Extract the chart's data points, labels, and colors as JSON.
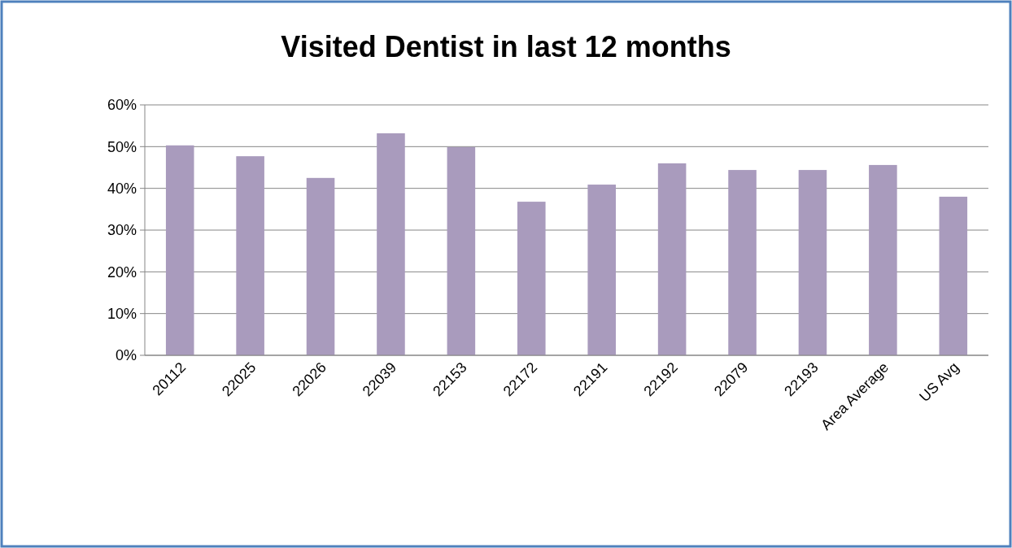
{
  "chart_data": {
    "type": "bar",
    "title": "Visited Dentist in last 12 months",
    "categories": [
      "20112",
      "22025",
      "22026",
      "22039",
      "22153",
      "22172",
      "22191",
      "22192",
      "22079",
      "22193",
      "Area Average",
      "US Avg"
    ],
    "values": [
      50.3,
      47.7,
      42.5,
      53.2,
      49.9,
      36.8,
      40.9,
      46.0,
      44.4,
      44.4,
      45.6,
      38.0
    ],
    "color": "#a99bbd",
    "ylim": [
      0,
      60
    ],
    "yticks": [
      {
        "value": 0,
        "label": "0%"
      },
      {
        "value": 10,
        "label": "10%"
      },
      {
        "value": 20,
        "label": "20%"
      },
      {
        "value": 30,
        "label": "30%"
      },
      {
        "value": 40,
        "label": "40%"
      },
      {
        "value": 50,
        "label": "50%"
      },
      {
        "value": 60,
        "label": "60%"
      }
    ],
    "grid": "y"
  }
}
